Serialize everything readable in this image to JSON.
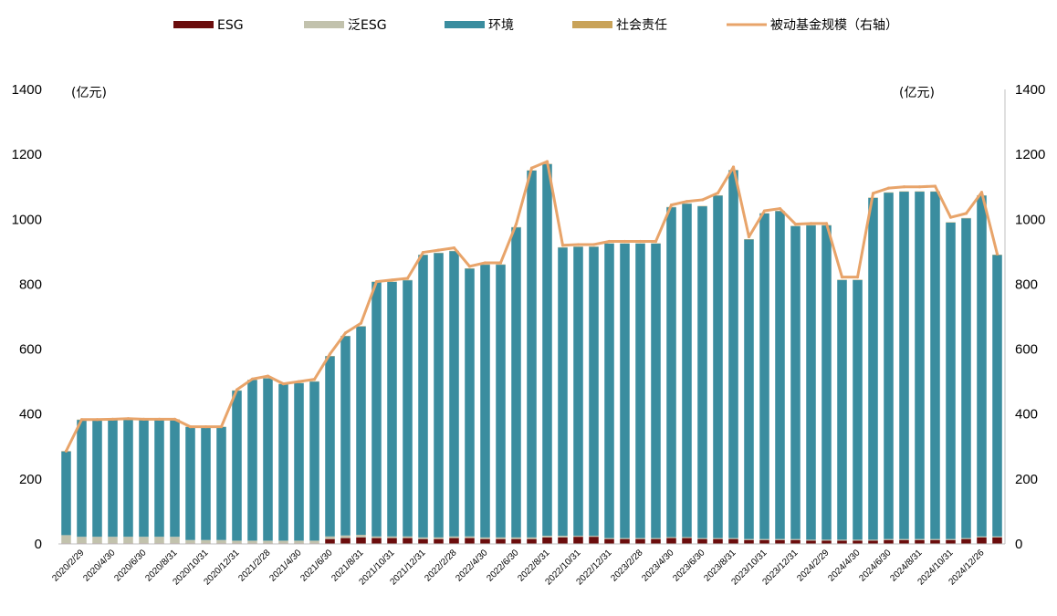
{
  "chart_data": {
    "type": "bar",
    "stacked": true,
    "left_unit": "(亿元)",
    "right_unit": "(亿元)",
    "ylim": [
      0,
      1400
    ],
    "y2lim": [
      0,
      1400
    ],
    "yticks": [
      0,
      200,
      400,
      600,
      800,
      1000,
      1200,
      1400
    ],
    "grid": false,
    "legend_position": "top",
    "x": [
      "2020/1/31",
      "2020/2/29",
      "2020/3/31",
      "2020/4/30",
      "2020/5/31",
      "2020/6/30",
      "2020/7/31",
      "2020/8/31",
      "2020/9/30",
      "2020/10/31",
      "2020/11/30",
      "2020/12/31",
      "2021/1/31",
      "2021/2/28",
      "2021/3/31",
      "2021/4/30",
      "2021/5/31",
      "2021/6/30",
      "2021/7/31",
      "2021/8/31",
      "2021/9/30",
      "2021/10/31",
      "2021/11/30",
      "2021/12/31",
      "2022/1/31",
      "2022/2/28",
      "2022/3/31",
      "2022/4/30",
      "2022/5/31",
      "2022/6/30",
      "2022/7/31",
      "2022/8/31",
      "2022/9/30",
      "2022/10/31",
      "2022/11/30",
      "2022/12/31",
      "2023/1/31",
      "2023/2/28",
      "2023/3/31",
      "2023/4/30",
      "2023/5/31",
      "2023/6/30",
      "2023/7/31",
      "2023/8/31",
      "2023/9/30",
      "2023/10/31",
      "2023/11/30",
      "2023/12/31",
      "2024/1/31",
      "2024/2/29",
      "2024/3/31",
      "2024/4/30",
      "2024/5/31",
      "2024/6/30",
      "2024/7/31",
      "2024/8/31",
      "2024/9/30",
      "2024/10/31",
      "2024/11/30",
      "2024/12/26",
      "2025/1/31"
    ],
    "x_tick_labels": [
      "2020/2/29",
      "2020/4/30",
      "2020/6/30",
      "2020/8/31",
      "2020/10/31",
      "2020/12/31",
      "2021/2/28",
      "2021/4/30",
      "2021/6/30",
      "2021/8/31",
      "2021/10/31",
      "2021/12/31",
      "2022/2/28",
      "2022/4/30",
      "2022/6/30",
      "2022/8/31",
      "2022/10/31",
      "2022/12/31",
      "2023/2/28",
      "2023/4/30",
      "2023/6/30",
      "2023/8/31",
      "2023/10/31",
      "2023/12/31",
      "2024/2/29",
      "2024/4/30",
      "2024/6/30",
      "2024/8/31",
      "2024/10/31",
      "2024/12/26"
    ],
    "series": [
      {
        "name": "ESG",
        "color": "#6b0d0d",
        "values": [
          2,
          2,
          2,
          2,
          2,
          2,
          2,
          2,
          2,
          2,
          2,
          2,
          2,
          2,
          2,
          2,
          2,
          15,
          18,
          20,
          18,
          18,
          18,
          15,
          15,
          18,
          18,
          15,
          15,
          15,
          15,
          20,
          20,
          22,
          22,
          15,
          15,
          15,
          15,
          18,
          18,
          15,
          15,
          15,
          12,
          12,
          12,
          12,
          10,
          10,
          10,
          10,
          10,
          12,
          12,
          12,
          12,
          12,
          15,
          20,
          20
        ]
      },
      {
        "name": "泛ESG",
        "color": "#c2c2ad",
        "values": [
          25,
          20,
          20,
          20,
          20,
          20,
          20,
          20,
          10,
          10,
          10,
          8,
          8,
          8,
          8,
          8,
          8,
          8,
          8,
          8,
          5,
          5,
          5,
          5,
          5,
          5,
          5,
          5,
          5,
          5,
          5,
          5,
          5,
          3,
          3,
          3,
          3,
          3,
          3,
          3,
          3,
          3,
          3,
          3,
          3,
          3,
          3,
          3,
          3,
          3,
          3,
          3,
          3,
          3,
          3,
          3,
          3,
          3,
          3,
          3,
          3
        ]
      },
      {
        "name": "环境",
        "color": "#3a8d9f",
        "values": [
          258,
          360,
          360,
          361,
          363,
          361,
          361,
          361,
          348,
          348,
          348,
          462,
          495,
          500,
          482,
          485,
          490,
          555,
          614,
          642,
          784,
          784,
          789,
          870,
          876,
          879,
          825,
          840,
          840,
          955,
          1130,
          1145,
          888,
          890,
          890,
          907,
          907,
          907,
          907,
          1016,
          1027,
          1022,
          1055,
          1133,
          923,
          1003,
          1010,
          964,
          968,
          968,
          800,
          800,
          1053,
          1067,
          1070,
          1070,
          1070,
          975,
          985,
          1050,
          867
        ]
      },
      {
        "name": "社会责任",
        "color": "#c9a359",
        "values": [
          1,
          1,
          1,
          1,
          1,
          1,
          1,
          1,
          1,
          1,
          1,
          1,
          1,
          1,
          1,
          1,
          1,
          1,
          1,
          1,
          1,
          1,
          1,
          1,
          1,
          1,
          1,
          1,
          1,
          1,
          1,
          1,
          1,
          1,
          1,
          1,
          1,
          1,
          1,
          1,
          1,
          1,
          1,
          1,
          1,
          1,
          1,
          1,
          1,
          1,
          1,
          1,
          1,
          1,
          1,
          1,
          1,
          1,
          1,
          1,
          1
        ]
      }
    ],
    "line": {
      "name": "被动基金规模（右轴）",
      "color": "#e8a46a",
      "axis": "right",
      "values": [
        286,
        383,
        383,
        384,
        386,
        384,
        384,
        384,
        361,
        361,
        361,
        475,
        508,
        517,
        493,
        500,
        507,
        585,
        650,
        680,
        808,
        813,
        818,
        898,
        905,
        912,
        855,
        866,
        866,
        985,
        1158,
        1178,
        920,
        922,
        922,
        932,
        932,
        932,
        932,
        1044,
        1055,
        1060,
        1081,
        1161,
        946,
        1026,
        1033,
        985,
        987,
        987,
        822,
        822,
        1080,
        1096,
        1100,
        1100,
        1102,
        1006,
        1018,
        1083,
        893
      ]
    }
  }
}
